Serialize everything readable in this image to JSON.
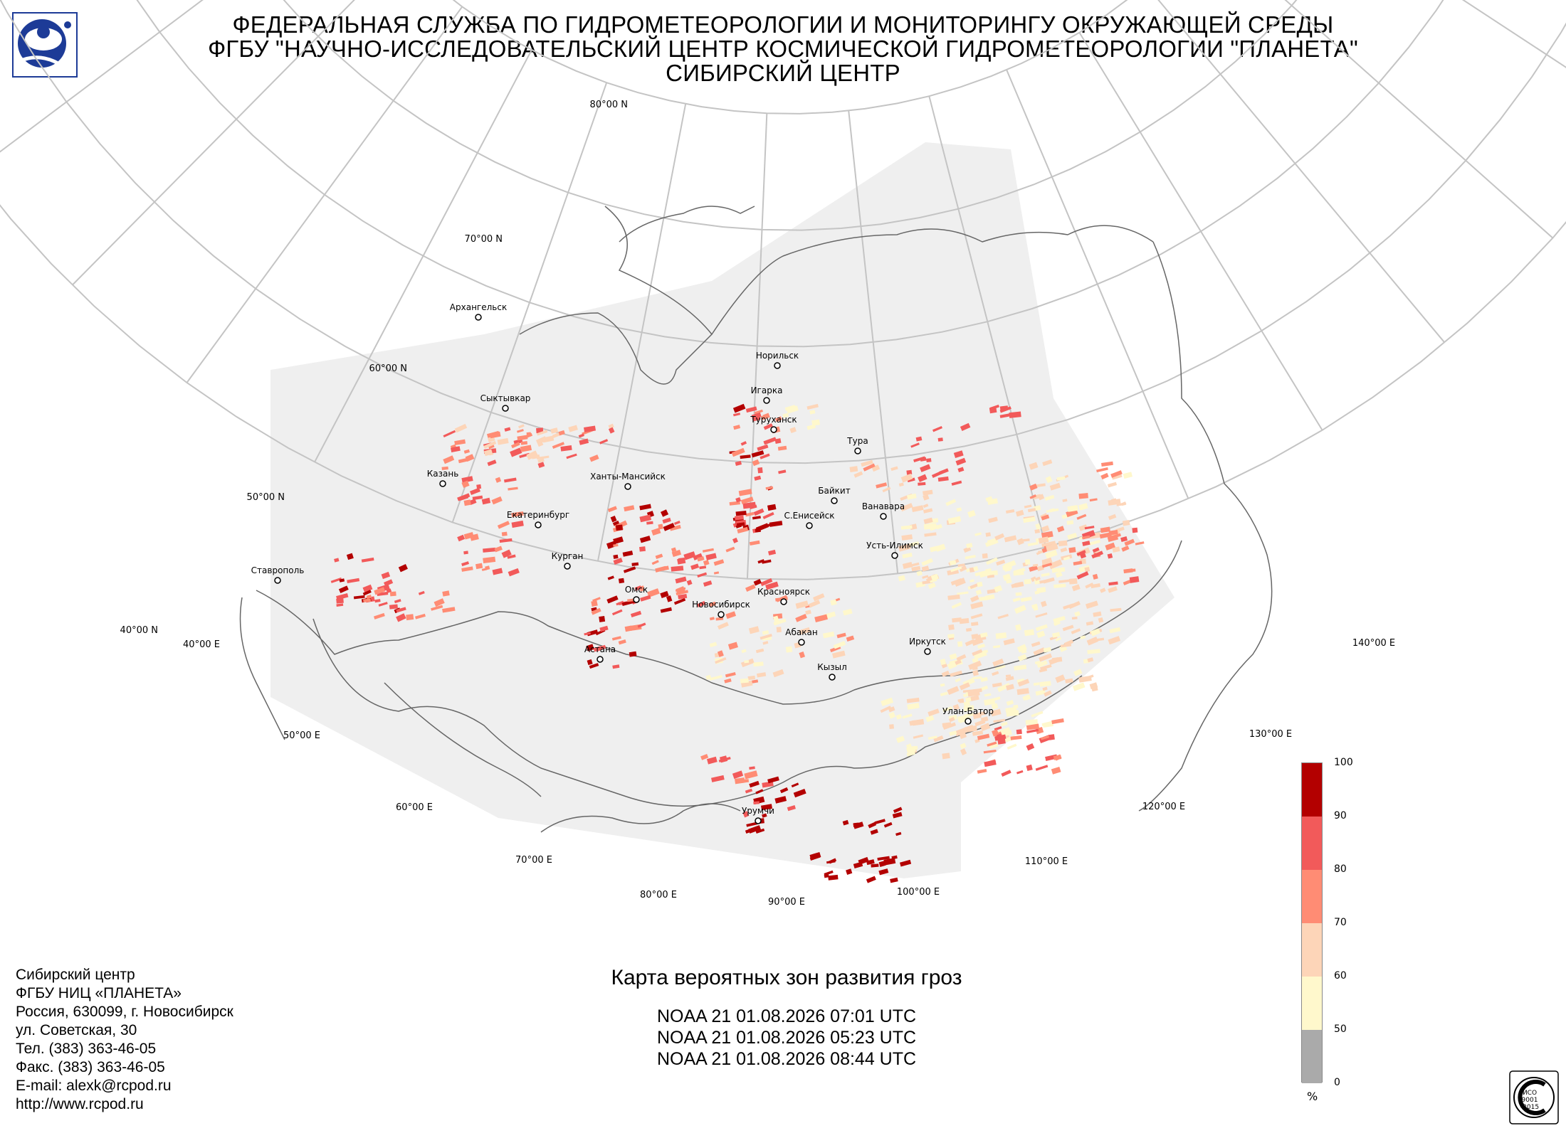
{
  "header": {
    "line1": "ФЕДЕРАЛЬНАЯ СЛУЖБА ПО ГИДРОМЕТЕОРОЛОГИИ И МОНИТОРИНГУ ОКРУЖАЮЩЕЙ СРЕДЫ",
    "line2": "ФГБУ \"НАУЧНО-ИССЛЕДОВАТЕЛЬСКИЙ ЦЕНТР КОСМИЧЕСКОЙ ГИДРОМЕТЕОРОЛОГИИ \"ПЛАНЕТА\"",
    "line3": "СИБИРСКИЙ ЦЕНТР"
  },
  "map": {
    "lat_labels": [
      "80°00 N",
      "70°00 N",
      "60°00 N",
      "50°00 N",
      "40°00 N"
    ],
    "lon_labels": [
      "40°00 E",
      "50°00 E",
      "60°00 E",
      "70°00 E",
      "80°00 E",
      "90°00 E",
      "100°00 E",
      "110°00 E",
      "120°00 E",
      "130°00 E",
      "140°00 E"
    ],
    "cities": [
      {
        "name": "Архангельск"
      },
      {
        "name": "Сыктывкар"
      },
      {
        "name": "Казань"
      },
      {
        "name": "Екатеринбург"
      },
      {
        "name": "Ханты-Мансийск"
      },
      {
        "name": "Курган"
      },
      {
        "name": "Ставрополь"
      },
      {
        "name": "Омск"
      },
      {
        "name": "Астана"
      },
      {
        "name": "Новосибирск"
      },
      {
        "name": "Норильск"
      },
      {
        "name": "Игарка"
      },
      {
        "name": "Туруханск"
      },
      {
        "name": "Тура"
      },
      {
        "name": "Байкит"
      },
      {
        "name": "С.Енисейск"
      },
      {
        "name": "Ванавара"
      },
      {
        "name": "Усть-Илимск"
      },
      {
        "name": "Красноярск"
      },
      {
        "name": "Абакан"
      },
      {
        "name": "Кызыл"
      },
      {
        "name": "Иркутск"
      },
      {
        "name": "Улан-Батор"
      },
      {
        "name": "Урумчи"
      }
    ],
    "colors": {
      "background": "#efefef",
      "grid": "#c4c4c4",
      "coast": "#666666"
    }
  },
  "legend": {
    "unit": "%",
    "ticks": [
      "100",
      "90",
      "80",
      "70",
      "60",
      "50",
      "0"
    ],
    "colors": [
      "#b30000",
      "#f25a5a",
      "#ff8c74",
      "#fdd5b8",
      "#fff8cc",
      "#aaaaaa"
    ]
  },
  "footer": {
    "lines": [
      "Сибирский центр",
      "ФГБУ НИЦ «ПЛАНЕТА»",
      "Россия, 630099, г. Новосибирск",
      "ул. Советская, 30",
      "Тел. (383) 363-46-05",
      "Факс. (383) 363-46-05",
      "E-mail: alexk@rcpod.ru",
      "http://www.rcpod.ru"
    ]
  },
  "caption": {
    "title": "Карта вероятных зон развития гроз",
    "passes": [
      "NOAA 21 01.08.2026  07:01 UTC",
      "NOAA 21 01.08.2026  05:23 UTC",
      "NOAA 21 01.08.2026  08:44 UTC"
    ]
  },
  "iso_badge": {
    "text1": "ИСО",
    "text2": "9001",
    "text3": "-2015"
  }
}
